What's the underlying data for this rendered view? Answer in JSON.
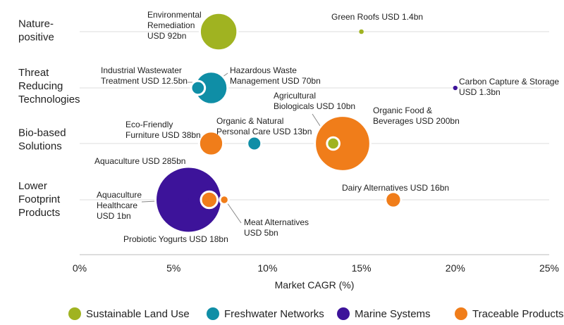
{
  "chart_data": {
    "type": "scatter",
    "xlabel": "Market CAGR (%)",
    "xlim": [
      0,
      25
    ],
    "x_ticks": [
      0,
      5,
      10,
      15,
      20,
      25
    ],
    "x_tick_labels": [
      "0%",
      "5%",
      "10%",
      "15%",
      "20%",
      "25%"
    ],
    "size_unit": "USD bn",
    "categories": [
      {
        "key": "nature",
        "lines": [
          "Nature-",
          "positive"
        ]
      },
      {
        "key": "threat",
        "lines": [
          "Threat",
          "Reducing",
          "Technologies"
        ]
      },
      {
        "key": "bio",
        "lines": [
          "Bio-based",
          "Solutions"
        ]
      },
      {
        "key": "lower",
        "lines": [
          "Lower",
          "Footprint",
          "Products"
        ]
      }
    ],
    "legend": [
      {
        "group": "land",
        "label": "Sustainable Land Use"
      },
      {
        "group": "water",
        "label": "Freshwater Networks"
      },
      {
        "group": "marine",
        "label": "Marine Systems"
      },
      {
        "group": "trace",
        "label": "Traceable Products"
      }
    ],
    "colors": {
      "land": "#a0b321",
      "water": "#0f8ea6",
      "marine": "#3d139a",
      "trace": "#f07d1a",
      "gridline": "#dddddd",
      "axis": "#bbbbbb",
      "leader": "#888888"
    },
    "points": [
      {
        "name": "Aquaculture",
        "category": "lower",
        "group": "marine",
        "x": 5.8,
        "size": 285,
        "label_lines": [
          "Aquaculture USD 285bn"
        ]
      },
      {
        "name": "Organic Food & Beverages",
        "category": "bio",
        "group": "trace",
        "x": 14.0,
        "size": 200,
        "label_lines": [
          "Organic Food &",
          "Beverages USD 200bn"
        ]
      },
      {
        "name": "Environmental Remediation",
        "category": "nature",
        "group": "land",
        "x": 7.4,
        "size": 92,
        "label_lines": [
          "Environmental",
          "Remediation",
          "USD 92bn"
        ]
      },
      {
        "name": "Hazardous Waste Management",
        "category": "threat",
        "group": "water",
        "x": 7.0,
        "size": 70,
        "label_lines": [
          "Hazardous Waste",
          "Management USD 70bn"
        ]
      },
      {
        "name": "Eco-Friendly Furniture",
        "category": "bio",
        "group": "trace",
        "x": 7.0,
        "size": 38,
        "label_lines": [
          "Eco-Friendly",
          "Furniture USD 38bn"
        ]
      },
      {
        "name": "Probiotic Yogurts",
        "category": "lower",
        "group": "trace",
        "x": 6.9,
        "size": 18,
        "label_lines": [
          "Probiotic Yogurts USD 18bn"
        ]
      },
      {
        "name": "Dairy Alternatives",
        "category": "lower",
        "group": "trace",
        "x": 16.7,
        "size": 16,
        "label_lines": [
          "Dairy Alternatives USD 16bn"
        ]
      },
      {
        "name": "Organic & Natural Personal Care",
        "category": "bio",
        "group": "water",
        "x": 9.3,
        "size": 13,
        "label_lines": [
          "Organic & Natural",
          "Personal Care USD 13bn"
        ]
      },
      {
        "name": "Industrial Wastewater Treatment",
        "category": "threat",
        "group": "water",
        "x": 6.3,
        "size": 12.5,
        "label_lines": [
          "Industrial Wastewater",
          "Treatment USD 12.5bn"
        ]
      },
      {
        "name": "Agricultural Biologicals",
        "category": "bio",
        "group": "land",
        "x": 13.5,
        "size": 10,
        "label_lines": [
          "Agricultural",
          "Biologicals USD 10bn"
        ]
      },
      {
        "name": "Meat Alternatives",
        "category": "lower",
        "group": "trace",
        "x": 7.7,
        "size": 5,
        "label_lines": [
          "Meat Alternatives",
          "USD 5bn"
        ]
      },
      {
        "name": "Green Roofs",
        "category": "nature",
        "group": "land",
        "x": 15.0,
        "size": 1.4,
        "label_lines": [
          "Green Roofs USD 1.4bn"
        ]
      },
      {
        "name": "Carbon Capture & Storage",
        "category": "threat",
        "group": "marine",
        "x": 20.0,
        "size": 1.3,
        "label_lines": [
          "Carbon Capture & Storage",
          "USD 1.3bn"
        ]
      },
      {
        "name": "Aquaculture Healthcare",
        "category": "lower",
        "group": "marine",
        "x": 5.7,
        "size": 1,
        "label_lines": [
          "Aquaculture",
          "Healthcare",
          "USD 1bn"
        ]
      }
    ]
  }
}
